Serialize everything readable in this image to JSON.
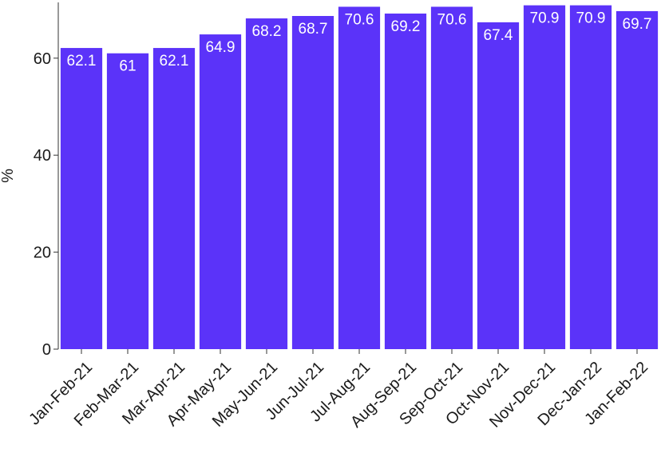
{
  "chart_data": {
    "type": "bar",
    "categories": [
      "Jan-Feb-21",
      "Feb-Mar-21",
      "Mar-Apr-21",
      "Apr-May-21",
      "May-Jun-21",
      "Jun-Jul-21",
      "Jul-Aug-21",
      "Aug-Sep-21",
      "Sep-Oct-21",
      "Oct-Nov-21",
      "Nov-Dec-21",
      "Dec-Jan-22",
      "Jan-Feb-22"
    ],
    "values": [
      62.1,
      61,
      62.1,
      64.9,
      68.2,
      68.7,
      70.6,
      69.2,
      70.6,
      67.4,
      70.9,
      70.9,
      69.7
    ],
    "value_labels": [
      "62.1",
      "61",
      "62.1",
      "64.9",
      "68.2",
      "68.7",
      "70.6",
      "69.2",
      "70.6",
      "67.4",
      "70.9",
      "70.9",
      "69.7"
    ],
    "title": "",
    "xlabel": "",
    "ylabel": "%",
    "ylim": [
      0,
      71.5
    ],
    "yticks": [
      0,
      20,
      40,
      60
    ],
    "ytick_labels": [
      "0",
      "20",
      "40",
      "60"
    ],
    "bar_color": "#5b33f9",
    "data_label_color": "#ffffff",
    "grid": false,
    "legend": "none"
  }
}
